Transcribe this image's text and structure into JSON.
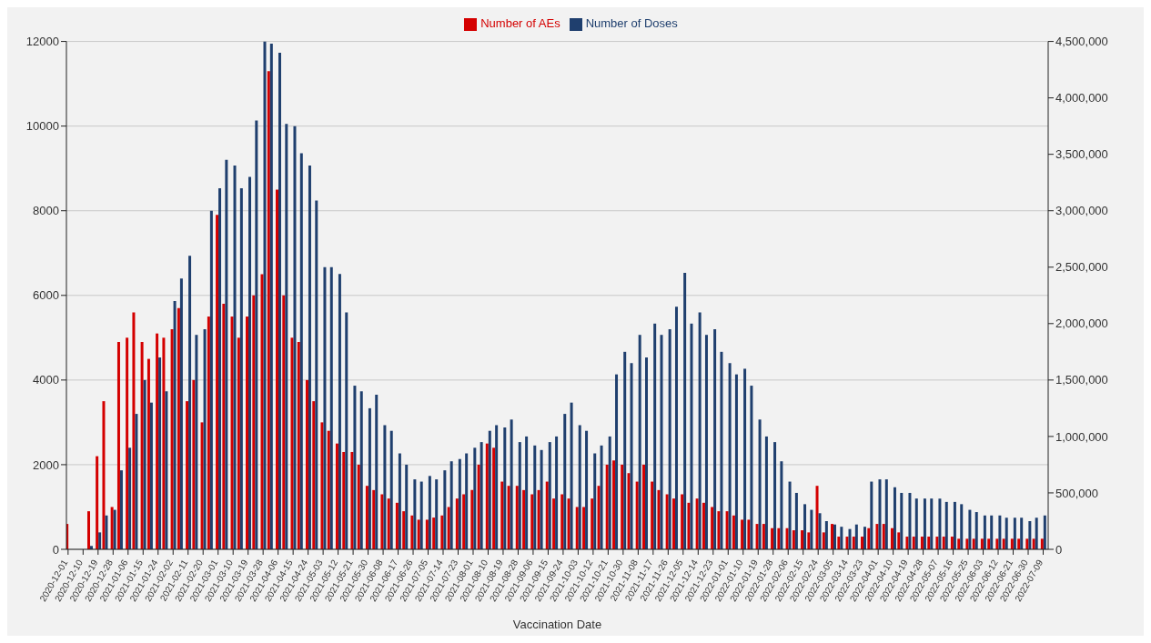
{
  "chart_data": {
    "type": "bar",
    "xlabel": "Vaccination Date",
    "legend": "top",
    "grid": "y",
    "x": [
      "2020-12-01",
      "2020-12-05",
      "2020-12-10",
      "2020-12-14",
      "2020-12-19",
      "2020-12-23",
      "2020-12-28",
      "2021-01-01",
      "2021-01-06",
      "2021-01-10",
      "2021-01-15",
      "2021-01-19",
      "2021-01-24",
      "2021-01-28",
      "2021-02-02",
      "2021-02-06",
      "2021-02-11",
      "2021-02-15",
      "2021-02-20",
      "2021-02-24",
      "2021-03-01",
      "2021-03-05",
      "2021-03-10",
      "2021-03-14",
      "2021-03-19",
      "2021-03-23",
      "2021-03-28",
      "2021-04-01",
      "2021-04-06",
      "2021-04-10",
      "2021-04-15",
      "2021-04-19",
      "2021-04-24",
      "2021-04-28",
      "2021-05-03",
      "2021-05-07",
      "2021-05-12",
      "2021-05-16",
      "2021-05-21",
      "2021-05-25",
      "2021-05-30",
      "2021-06-03",
      "2021-06-08",
      "2021-06-12",
      "2021-06-17",
      "2021-06-21",
      "2021-06-26",
      "2021-06-30",
      "2021-07-05",
      "2021-07-09",
      "2021-07-14",
      "2021-07-18",
      "2021-07-23",
      "2021-07-27",
      "2021-08-01",
      "2021-08-05",
      "2021-08-10",
      "2021-08-14",
      "2021-08-19",
      "2021-08-23",
      "2021-08-28",
      "2021-09-01",
      "2021-09-06",
      "2021-09-10",
      "2021-09-15",
      "2021-09-19",
      "2021-09-24",
      "2021-09-28",
      "2021-10-03",
      "2021-10-07",
      "2021-10-12",
      "2021-10-16",
      "2021-10-21",
      "2021-10-25",
      "2021-10-30",
      "2021-11-03",
      "2021-11-08",
      "2021-11-12",
      "2021-11-17",
      "2021-11-21",
      "2021-11-26",
      "2021-11-30",
      "2021-12-05",
      "2021-12-09",
      "2021-12-14",
      "2021-12-18",
      "2021-12-23",
      "2021-12-27",
      "2022-01-01",
      "2022-01-05",
      "2022-01-10",
      "2022-01-14",
      "2022-01-19",
      "2022-01-23",
      "2022-01-28",
      "2022-02-01",
      "2022-02-06",
      "2022-02-10",
      "2022-02-15",
      "2022-02-19",
      "2022-02-24",
      "2022-02-28",
      "2022-03-05",
      "2022-03-09",
      "2022-03-14",
      "2022-03-18",
      "2022-03-23",
      "2022-03-27",
      "2022-04-01",
      "2022-04-05",
      "2022-04-10",
      "2022-04-14",
      "2022-04-19",
      "2022-04-23",
      "2022-04-28",
      "2022-05-02",
      "2022-05-07",
      "2022-05-11",
      "2022-05-16",
      "2022-05-20",
      "2022-05-25",
      "2022-05-29",
      "2022-06-03",
      "2022-06-07",
      "2022-06-12",
      "2022-06-16",
      "2022-06-21",
      "2022-06-25",
      "2022-06-30",
      "2022-07-04",
      "2022-07-09"
    ],
    "series": [
      {
        "name": "Number of AEs",
        "color": "#d40000",
        "values": [
          600,
          0,
          0,
          900,
          2200,
          3500,
          1000,
          4900,
          5000,
          5600,
          4900,
          4500,
          5100,
          5000,
          5200,
          5700,
          3500,
          4000,
          3000,
          5500,
          7900,
          5800,
          5500,
          5000,
          5500,
          6000,
          6500,
          11300,
          8500,
          6000,
          5000,
          4900,
          4000,
          3500,
          3000,
          2800,
          2500,
          2300,
          2300,
          2000,
          1500,
          1400,
          1300,
          1200,
          1100,
          900,
          800,
          700,
          700,
          750,
          800,
          1000,
          1200,
          1300,
          1400,
          2000,
          2500,
          2400,
          1600,
          1500,
          1500,
          1400,
          1300,
          1400,
          1600,
          1200,
          1300,
          1200,
          1000,
          1000,
          1200,
          1500,
          2000,
          2100,
          2000,
          1800,
          1600,
          2000,
          1600,
          1400,
          1300,
          1200,
          1300,
          1100,
          1200,
          1100,
          1000,
          900,
          900,
          800,
          700,
          700,
          600,
          600,
          500,
          500,
          500,
          450,
          450,
          400,
          1500,
          400,
          600,
          300,
          300,
          300,
          300,
          500,
          600,
          600,
          500,
          400,
          300,
          300,
          300,
          300,
          300,
          300,
          300,
          250,
          250,
          250,
          250,
          250,
          250,
          250,
          250,
          250,
          250,
          250,
          250
        ]
      },
      {
        "name": "Number of Doses",
        "color": "#1f3f6e",
        "axis": "y2",
        "values": [
          0,
          0,
          0,
          30000,
          150000,
          300000,
          350000,
          700000,
          900000,
          1200000,
          1500000,
          1300000,
          1700000,
          1400000,
          2200000,
          2400000,
          2600000,
          1900000,
          1950000,
          3000000,
          3200000,
          3450000,
          3400000,
          3200000,
          3300000,
          3800000,
          4500000,
          4480000,
          4400000,
          3770000,
          3750000,
          3510000,
          3400000,
          3090000,
          2500000,
          2500000,
          2440000,
          2100000,
          1450000,
          1400000,
          1250000,
          1370000,
          1100000,
          1050000,
          850000,
          750000,
          620000,
          600000,
          650000,
          620000,
          700000,
          780000,
          800000,
          850000,
          900000,
          950000,
          1050000,
          1100000,
          1080000,
          1150000,
          950000,
          1000000,
          920000,
          880000,
          950000,
          1000000,
          1200000,
          1300000,
          1100000,
          1050000,
          850000,
          920000,
          1000000,
          1550000,
          1750000,
          1650000,
          1900000,
          1700000,
          2000000,
          1900000,
          1950000,
          2150000,
          2450000,
          2000000,
          2100000,
          1900000,
          1950000,
          1750000,
          1650000,
          1550000,
          1600000,
          1450000,
          1150000,
          1000000,
          950000,
          780000,
          600000,
          500000,
          400000,
          350000,
          320000,
          250000,
          220000,
          200000,
          180000,
          220000,
          200000,
          600000,
          620000,
          620000,
          550000,
          500000,
          500000,
          450000,
          450000,
          450000,
          450000,
          420000,
          420000,
          400000,
          350000,
          330000,
          300000,
          300000,
          300000,
          280000,
          280000,
          280000,
          250000,
          280000,
          300000
        ]
      }
    ],
    "xlim": [
      "2020-11-30",
      "2022-07-12"
    ],
    "xticks": [
      "2020-12-01",
      "2020-12-10",
      "2020-12-19",
      "2020-12-28",
      "2021-01-06",
      "2021-01-15",
      "2021-01-24",
      "2021-02-02",
      "2021-02-11",
      "2021-02-20",
      "2021-03-01",
      "2021-03-10",
      "2021-03-19",
      "2021-03-28",
      "2021-04-06",
      "2021-04-15",
      "2021-04-24",
      "2021-05-03",
      "2021-05-12",
      "2021-05-21",
      "2021-05-30",
      "2021-06-08",
      "2021-06-17",
      "2021-06-26",
      "2021-07-05",
      "2021-07-14",
      "2021-07-23",
      "2021-08-01",
      "2021-08-10",
      "2021-08-19",
      "2021-08-28",
      "2021-09-06",
      "2021-09-15",
      "2021-09-24",
      "2021-10-03",
      "2021-10-12",
      "2021-10-21",
      "2021-10-30",
      "2021-11-08",
      "2021-11-17",
      "2021-11-26",
      "2021-12-05",
      "2021-12-14",
      "2021-12-23",
      "2022-01-01",
      "2022-01-10",
      "2022-01-19",
      "2022-01-28",
      "2022-02-06",
      "2022-02-15",
      "2022-02-24",
      "2022-03-05",
      "2022-03-14",
      "2022-03-23",
      "2022-04-01",
      "2022-04-10",
      "2022-04-19",
      "2022-04-28",
      "2022-05-07",
      "2022-05-16",
      "2022-05-25",
      "2022-06-03",
      "2022-06-12",
      "2022-06-21",
      "2022-06-30",
      "2022-07-09"
    ],
    "ylim": [
      0,
      12000
    ],
    "yticks": [
      0,
      2000,
      4000,
      6000,
      8000,
      10000,
      12000
    ],
    "y2lim": [
      0,
      4500000
    ],
    "y2ticks": [
      {
        "value": 0,
        "label": "0"
      },
      {
        "value": 500000,
        "label": "500,000"
      },
      {
        "value": 1000000,
        "label": "1,000,000"
      },
      {
        "value": 1500000,
        "label": "1,500,000"
      },
      {
        "value": 2000000,
        "label": "2,000,000"
      },
      {
        "value": 2500000,
        "label": "2,500,000"
      },
      {
        "value": 3000000,
        "label": "3,000,000"
      },
      {
        "value": 3500000,
        "label": "3,500,000"
      },
      {
        "value": 4000000,
        "label": "4,000,000"
      },
      {
        "value": 4500000,
        "label": "4,500,000"
      }
    ]
  }
}
